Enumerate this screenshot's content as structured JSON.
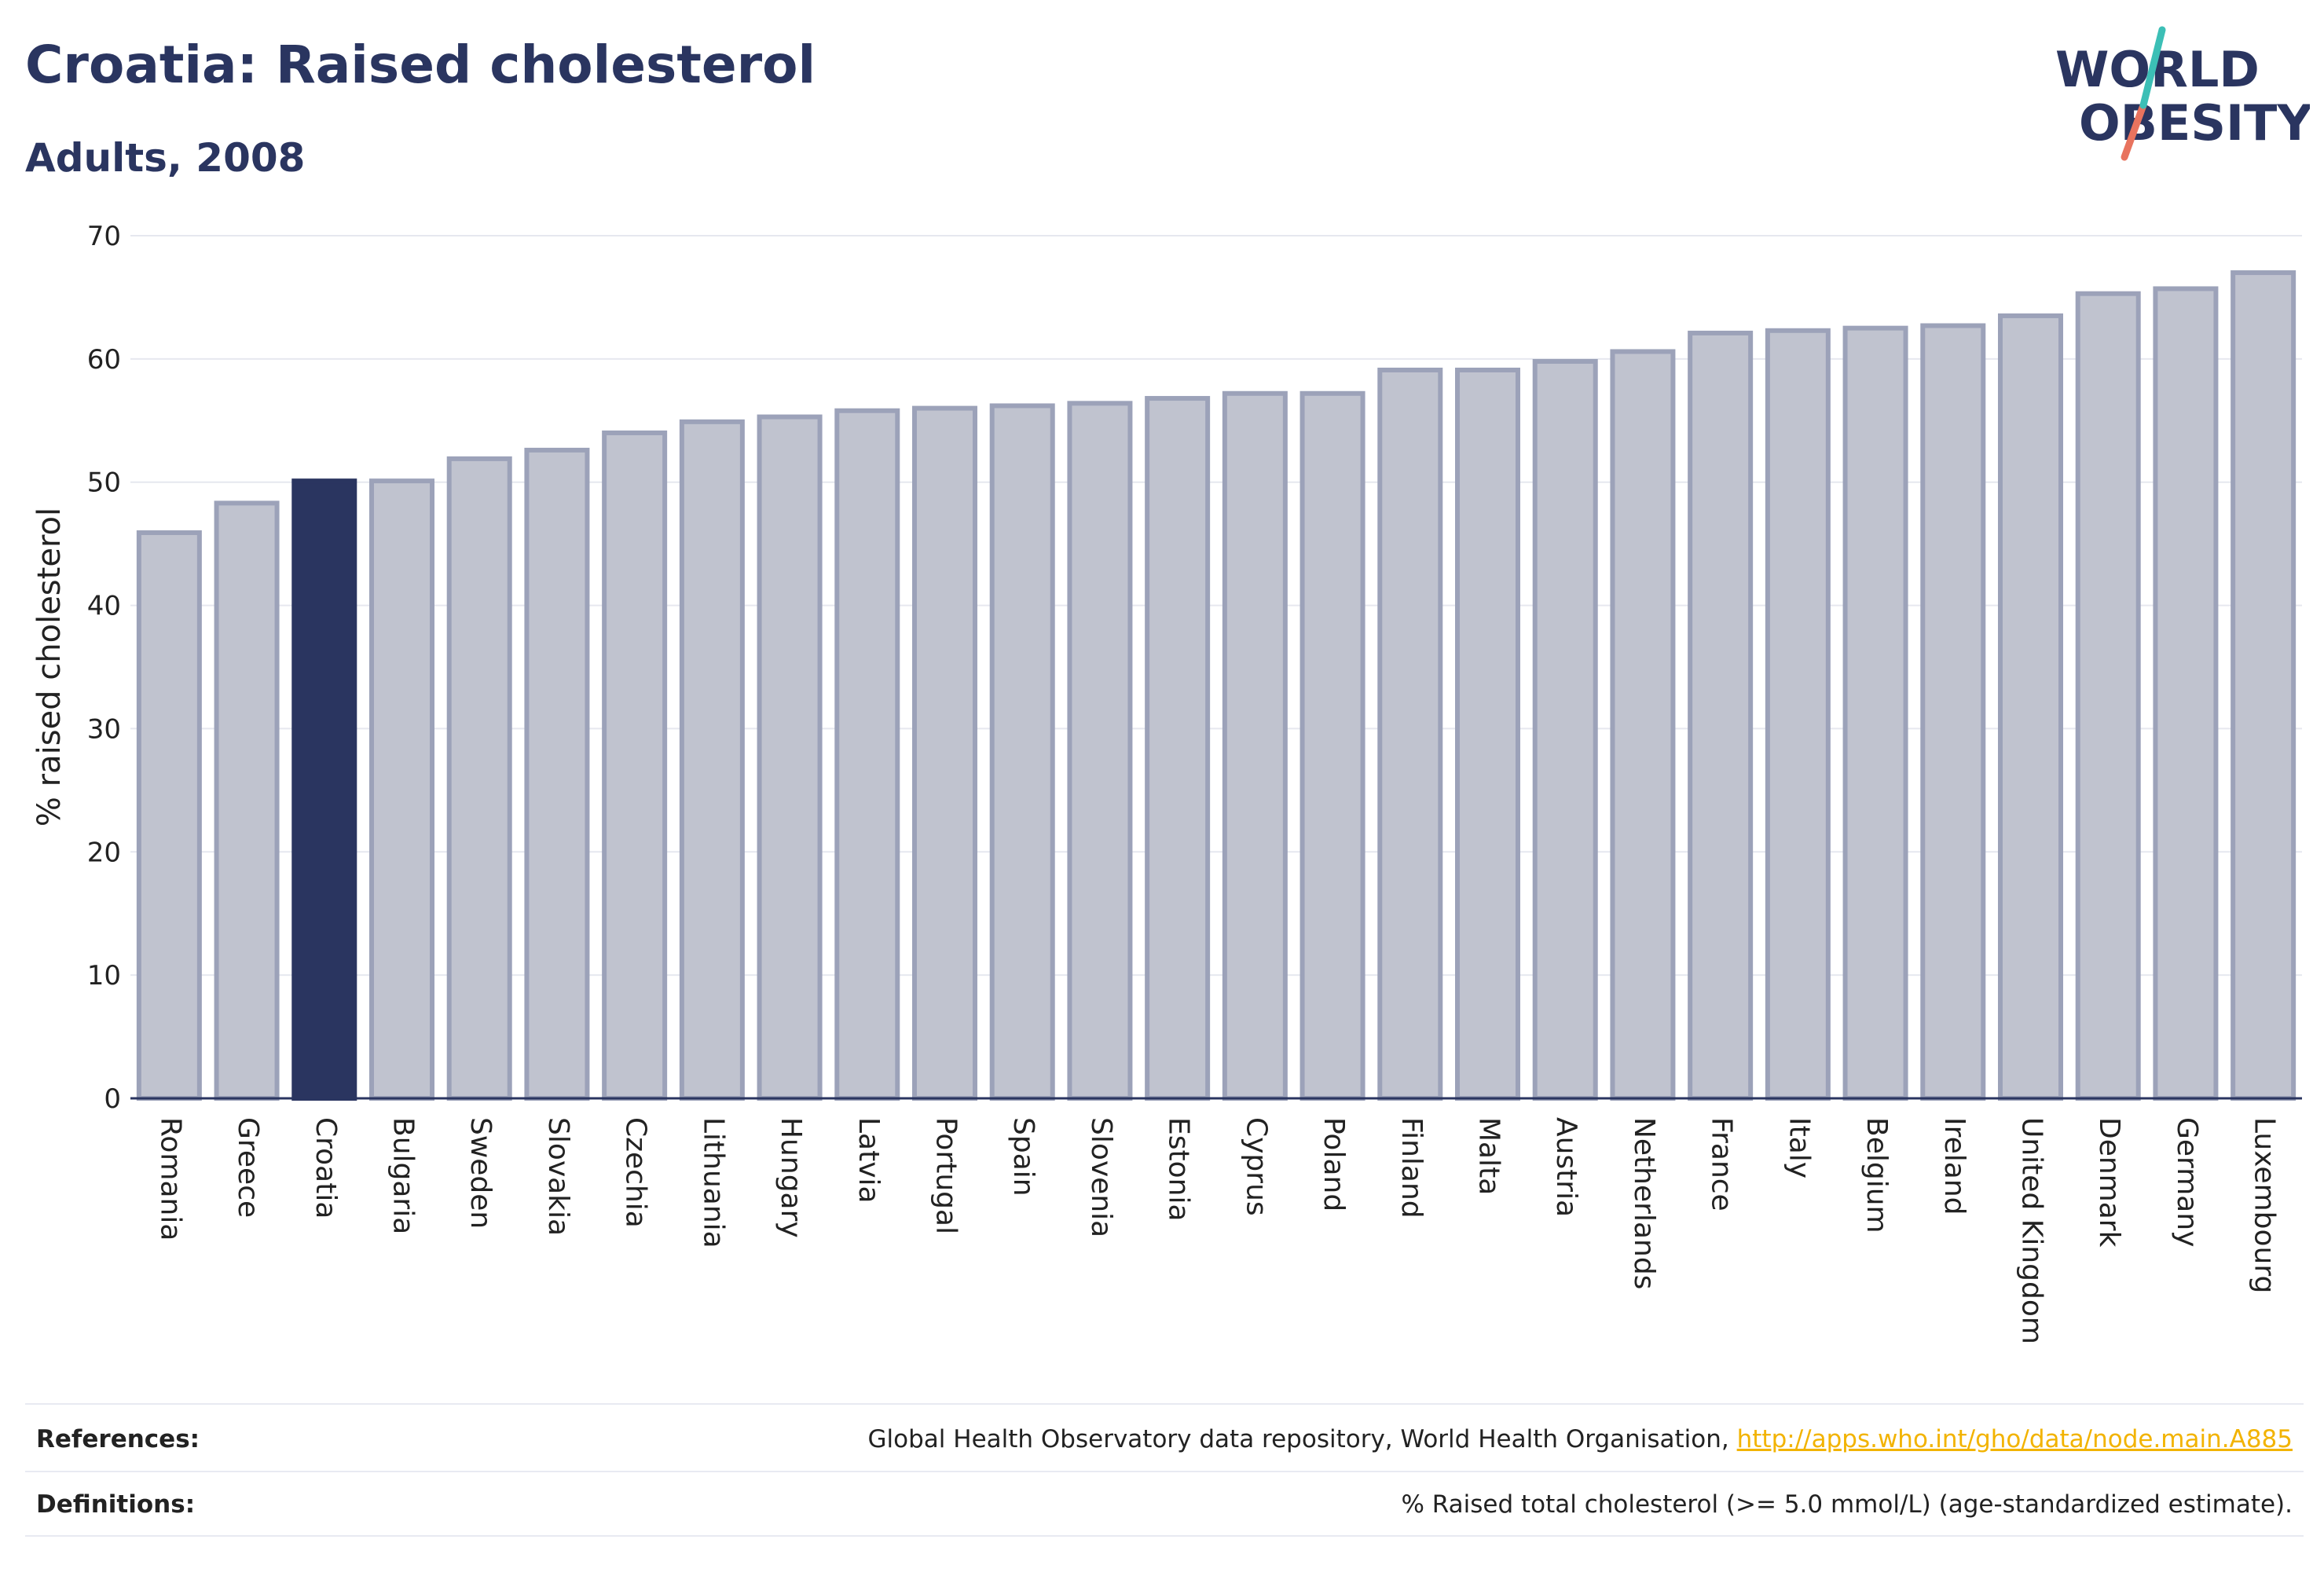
{
  "header": {
    "title": "Croatia: Raised cholesterol",
    "subtitle": "Adults, 2008"
  },
  "logo": {
    "line1": "WORLD",
    "line2": "OBESITY"
  },
  "footer": {
    "references_label": "References:",
    "references_text": "Global Health Observatory data repository, World Health Organisation,",
    "references_link": "http://apps.who.int/gho/data/node.main.A885",
    "definitions_label": "Definitions:",
    "definitions_text": "% Raised total cholesterol (>= 5.0 mmol/L) (age-standardized estimate)."
  },
  "colors": {
    "highlight": "#2a3560",
    "bar_fill": "#c0c3cf",
    "bar_stroke": "#9ca2b9",
    "grid": "#e6e8ef",
    "axis_text": "#222222"
  },
  "chart_data": {
    "type": "bar",
    "title": "Croatia: Raised cholesterol",
    "subtitle": "Adults, 2008",
    "ylabel": "% raised cholesterol",
    "xlabel": "",
    "ylim": [
      0,
      70
    ],
    "yticks": [
      0,
      10,
      20,
      30,
      40,
      50,
      60,
      70
    ],
    "grid": true,
    "highlight": "Croatia",
    "categories": [
      "Romania",
      "Greece",
      "Croatia",
      "Bulgaria",
      "Sweden",
      "Slovakia",
      "Czechia",
      "Lithuania",
      "Hungary",
      "Latvia",
      "Portugal",
      "Spain",
      "Slovenia",
      "Estonia",
      "Cyprus",
      "Poland",
      "Finland",
      "Malta",
      "Austria",
      "Netherlands",
      "France",
      "Italy",
      "Belgium",
      "Ireland",
      "United Kingdom",
      "Denmark",
      "Germany",
      "Luxembourg"
    ],
    "values": [
      45.9,
      48.3,
      50.1,
      50.1,
      51.9,
      52.6,
      54.0,
      54.9,
      55.3,
      55.8,
      56.0,
      56.2,
      56.4,
      56.8,
      57.2,
      57.2,
      59.1,
      59.1,
      59.8,
      60.6,
      62.1,
      62.3,
      62.5,
      62.7,
      63.5,
      65.3,
      65.7,
      67.0
    ]
  }
}
